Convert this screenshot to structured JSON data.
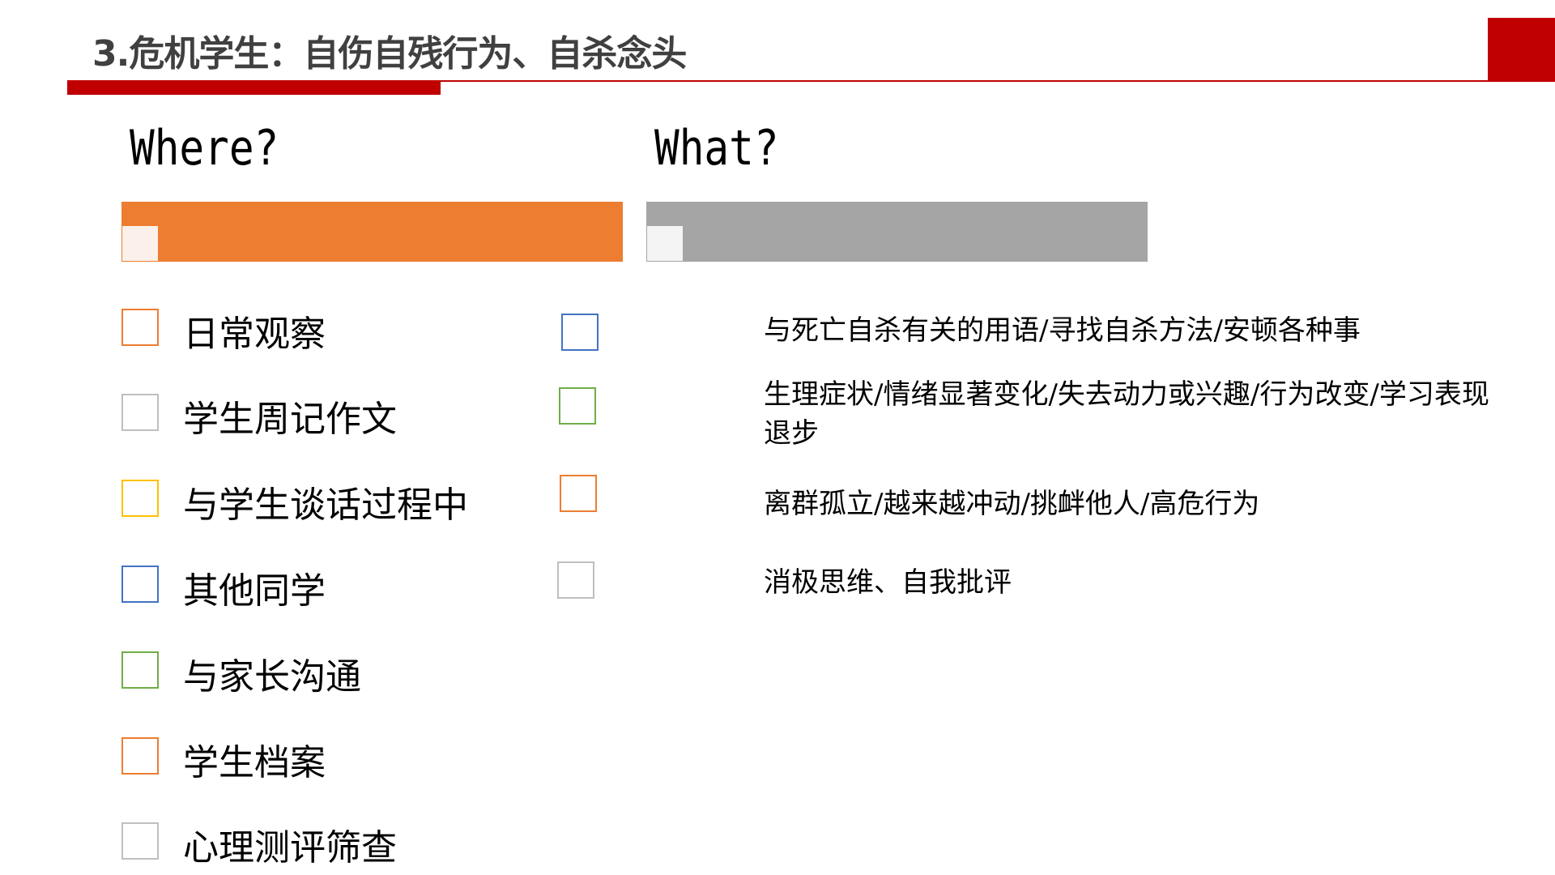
{
  "title": "3.危机学生：自伤自残行为、自杀念头",
  "colors": {
    "accent_red": "#C00000",
    "orange": "#ED7D31",
    "gray": "#A5A5A5",
    "blue": "#4472C4",
    "green": "#70AD47",
    "yellow": "#FFC000",
    "light_gray": "#BFBFBF"
  },
  "where": {
    "heading": "Where?",
    "items": [
      {
        "label": "日常观察",
        "color": "#ED7D31"
      },
      {
        "label": "学生周记作文",
        "color": "#BFBFBF"
      },
      {
        "label": "与学生谈话过程中",
        "color": "#FFC000"
      },
      {
        "label": "其他同学",
        "color": "#4472C4"
      },
      {
        "label": "与家长沟通",
        "color": "#70AD47"
      },
      {
        "label": "学生档案",
        "color": "#ED7D31"
      },
      {
        "label": "心理测评筛查",
        "color": "#BFBFBF"
      }
    ]
  },
  "what": {
    "heading": "What?",
    "items": [
      {
        "label": "与死亡自杀有关的用语/寻找自杀方法/安顿各种事",
        "color": "#4472C4"
      },
      {
        "label": "生理症状/情绪显著变化/失去动力或兴趣/行为改变/学习表现退步",
        "color": "#70AD47"
      },
      {
        "label": "离群孤立/越来越冲动/挑衅他人/高危行为",
        "color": "#ED7D31"
      },
      {
        "label": "消极思维、自我批评",
        "color": "#BFBFBF"
      }
    ]
  }
}
